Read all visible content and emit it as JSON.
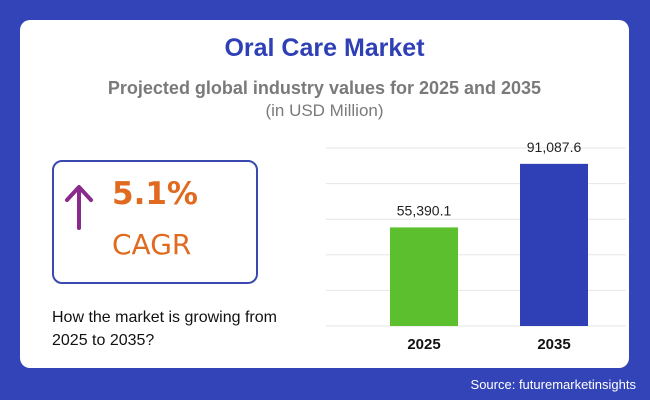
{
  "chart_data": {
    "type": "bar",
    "title": "Oral Care Market",
    "subtitle": "Projected global industry values for 2025 and 2035",
    "unit": "(in USD Million)",
    "categories": [
      "2025",
      "2035"
    ],
    "values": [
      55390.1,
      91087.6
    ],
    "value_labels": [
      "55,390.1",
      "91,087.6"
    ],
    "bar_colors": [
      "#5cbf2e",
      "#2f3fb5"
    ],
    "ylim": [
      0,
      100000
    ],
    "grid": true,
    "xlabel": "",
    "ylabel": ""
  },
  "cagr": {
    "value": "5.1%",
    "label": "CAGR",
    "color": "#e06a1f",
    "arrow_color": "#8a2a8a",
    "icon": "arrow-up-icon"
  },
  "growth_text": "How the market is growing from 2025 to 2035?",
  "source": "Source: futuremarketinsights",
  "colors": {
    "background": "#3344b8",
    "title": "#2f3fb5",
    "subtitle": "#7a7a7a"
  }
}
